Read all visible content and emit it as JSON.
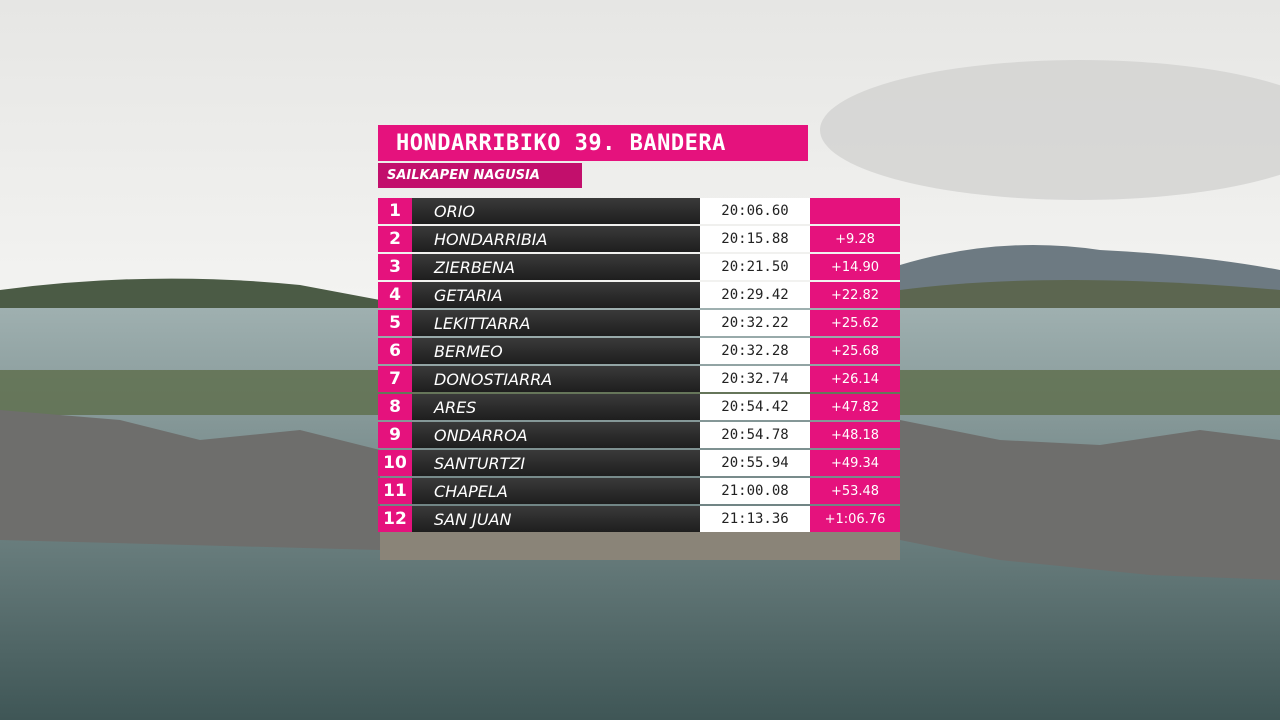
{
  "header": {
    "title": "HONDARRIBIKO 39. BANDERA",
    "subtitle": "SAILKAPEN NAGUSIA"
  },
  "table": {
    "rows": [
      {
        "position": "1",
        "team": "ORIO",
        "time": "20:06.60"
      },
      {
        "position": "2",
        "team": "HONDARRIBIA",
        "time": "20:15.88",
        "gap": "+9.28"
      },
      {
        "position": "3",
        "team": "ZIERBENA",
        "time": "20:21.50",
        "gap": "+14.90"
      },
      {
        "position": "4",
        "team": "GETARIA",
        "time": "20:29.42",
        "gap": "+22.82"
      },
      {
        "position": "5",
        "team": "LEKITTARRA",
        "time": "20:32.22",
        "gap": "+25.62"
      },
      {
        "position": "6",
        "team": "BERMEO",
        "time": "20:32.28",
        "gap": "+25.68"
      },
      {
        "position": "7",
        "team": "DONOSTIARRA",
        "time": "20:32.74",
        "gap": "+26.14"
      },
      {
        "position": "8",
        "team": "ARES",
        "time": "20:54.42",
        "gap": "+47.82"
      },
      {
        "position": "9",
        "team": "ONDARROA",
        "time": "20:54.78",
        "gap": "+48.18"
      },
      {
        "position": "10",
        "team": "SANTURTZI",
        "time": "20:55.94",
        "gap": "+49.34"
      },
      {
        "position": "11",
        "team": "CHAPELA",
        "time": "21:00.08",
        "gap": "+53.48"
      },
      {
        "position": "12",
        "team": "SAN JUAN",
        "time": "21:13.36",
        "gap": "+1:06.76"
      }
    ]
  }
}
